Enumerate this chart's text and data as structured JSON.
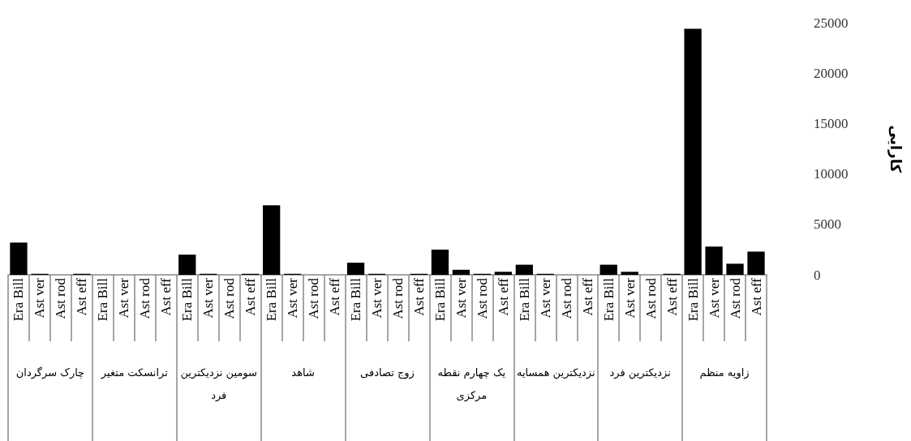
{
  "chart_data": {
    "type": "bar",
    "ylabel": "کارایی",
    "categories": [
      "Era Bill",
      "Ast ver",
      "Ast rod",
      "Ast eff",
      "Era Bill",
      "Ast ver",
      "Ast rod",
      "Ast eff",
      "Era Bill",
      "Ast ver",
      "Ast rod",
      "Ast eff",
      "Era Bill",
      "Ast ver",
      "Ast rod",
      "Ast eff",
      "Era Bill",
      "Ast ver",
      "Ast rod",
      "Ast eff",
      "Era Bill",
      "Ast ver",
      "Ast rod",
      "Ast eff",
      "Era Bill",
      "Ast ver",
      "Ast rod",
      "Ast eff",
      "Era Bill",
      "Ast ver",
      "Ast rod",
      "Ast eff",
      "Era Bill",
      "Ast ver",
      "Ast rod",
      "Ast eff"
    ],
    "values": [
      3200,
      100,
      0,
      100,
      0,
      0,
      0,
      0,
      2000,
      100,
      0,
      100,
      6900,
      100,
      0,
      0,
      1200,
      100,
      0,
      100,
      2500,
      500,
      100,
      300,
      1000,
      100,
      0,
      0,
      1000,
      300,
      0,
      100,
      24400,
      2800,
      1100,
      2300
    ],
    "color": "#000000",
    "annotations": [
      "چارک سرگردان",
      "ترانسکت متغیر",
      "سومین نزدیکترین فرد",
      "شاهد",
      "زوج تصادفی",
      "یک چهارم نقطه مرکزی",
      "نزدیکترین همسایه",
      "نزدیکترین فرد",
      "زاویه منظم"
    ],
    "ylim": [
      0,
      25000
    ],
    "yticks": [
      0,
      5000,
      10000,
      15000,
      20000,
      25000
    ],
    "grid": false
  }
}
